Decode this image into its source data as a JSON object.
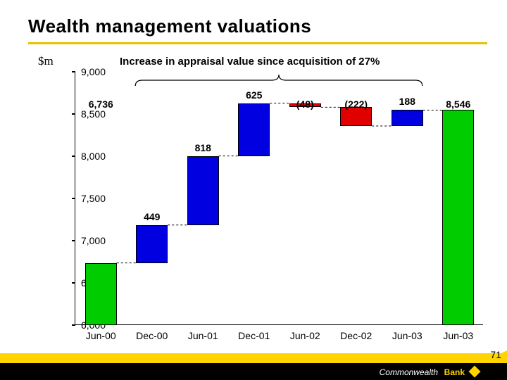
{
  "title": "Wealth management valuations",
  "y_unit": "$m",
  "subtitle": "Increase in appraisal value since acquisition of 27%",
  "chart": {
    "type": "waterfall",
    "ylim": [
      6000,
      9000
    ],
    "ytick_step": 500,
    "yticks": [
      6000,
      6500,
      7000,
      7500,
      8000,
      8500,
      9000
    ],
    "ytick_format": "comma",
    "background_color": "#ffffff",
    "axis_color": "#000000",
    "bar_border_color": "#000000",
    "columns": [
      {
        "label": "Jun-00",
        "value": 6736,
        "display": "6,736",
        "cumulative_start": 6000,
        "cumulative_end": 6736,
        "color": "#00cc00",
        "type": "start"
      },
      {
        "label": "Dec-00",
        "value": 449,
        "display": "449",
        "cumulative_start": 6736,
        "cumulative_end": 7185,
        "color": "#0000e0",
        "type": "increase"
      },
      {
        "label": "Jun-01",
        "value": 818,
        "display": "818",
        "cumulative_start": 7185,
        "cumulative_end": 8003,
        "color": "#0000e0",
        "type": "increase"
      },
      {
        "label": "Dec-01",
        "value": 625,
        "display": "625",
        "cumulative_start": 8003,
        "cumulative_end": 8628,
        "color": "#0000e0",
        "type": "increase"
      },
      {
        "label": "Jun-02",
        "value": -48,
        "display": "(48)",
        "cumulative_start": 8628,
        "cumulative_end": 8580,
        "color": "#e00000",
        "type": "decrease"
      },
      {
        "label": "Dec-02",
        "value": -222,
        "display": "(222)",
        "cumulative_start": 8580,
        "cumulative_end": 8358,
        "color": "#e00000",
        "type": "decrease"
      },
      {
        "label": "Jun-03",
        "value": 188,
        "display": "188",
        "cumulative_start": 8358,
        "cumulative_end": 8546,
        "color": "#0000e0",
        "type": "increase"
      },
      {
        "label": "Jun-03",
        "value": 8546,
        "display": "8,546",
        "cumulative_start": 6000,
        "cumulative_end": 8546,
        "color": "#00cc00",
        "type": "end"
      }
    ],
    "bar_width_ratio": 0.62,
    "connector_color": "#000000",
    "connector_dash": "3,3",
    "label_fontsize": 14,
    "tick_fontsize": 14
  },
  "brace": {
    "covers_columns": [
      1,
      6
    ],
    "color": "#000000"
  },
  "footer": {
    "brand_left": "Commonwealth",
    "brand_right": "Bank",
    "yellow": "#ffd400",
    "black": "#000000"
  },
  "page_number": "71"
}
